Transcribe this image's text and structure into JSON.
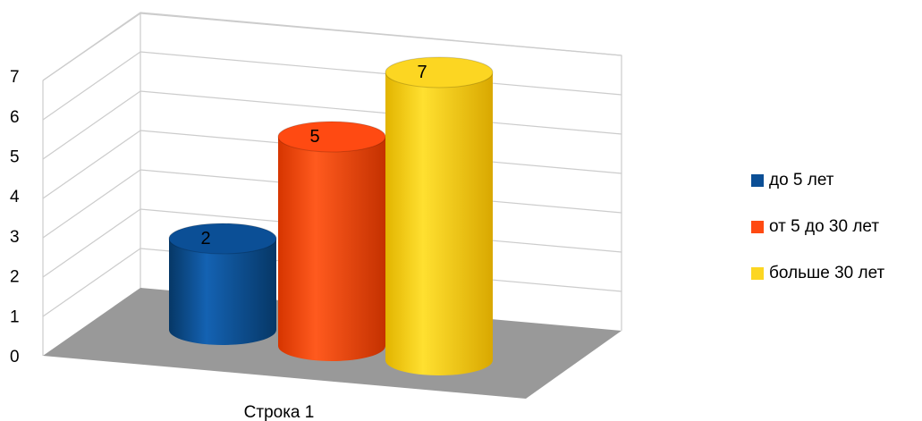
{
  "chart_data": {
    "type": "bar",
    "style": "3d-cylinder",
    "categories": [
      "Строка 1"
    ],
    "series": [
      {
        "name": "до 5 лет",
        "values": [
          2
        ],
        "color": "#0b4f96"
      },
      {
        "name": "от 5 до 30 лет",
        "values": [
          5
        ],
        "color": "#ff4a12"
      },
      {
        "name": "больше 30 лет",
        "values": [
          7
        ],
        "color": "#fcd622"
      }
    ],
    "y_ticks": [
      "0",
      "1",
      "2",
      "3",
      "4",
      "5",
      "6",
      "7"
    ],
    "ylim": [
      0,
      7
    ],
    "data_labels": [
      "2",
      "5",
      "7"
    ],
    "grid": true,
    "legend": "right",
    "floor_color": "#999999"
  }
}
